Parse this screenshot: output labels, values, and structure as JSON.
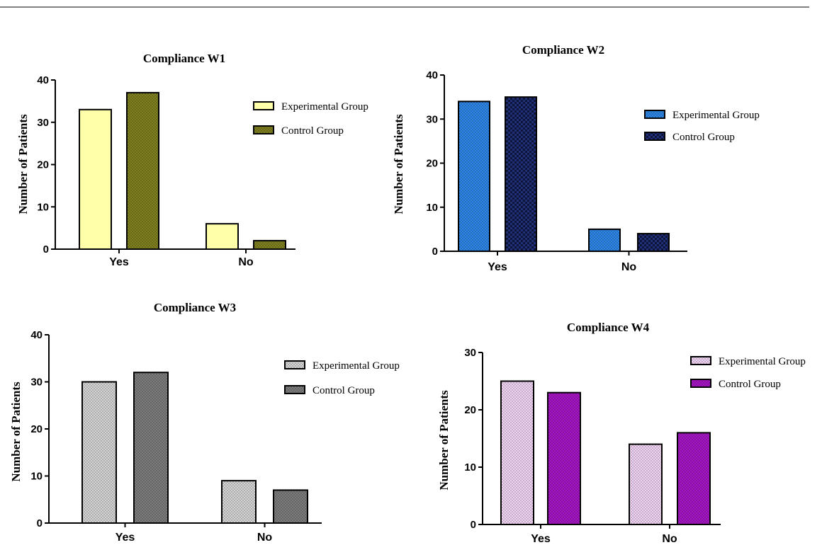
{
  "chart_data": [
    {
      "type": "bar",
      "title": "Compliance W1",
      "ylabel": "Number of Patients",
      "xlabel": "",
      "categories": [
        "Yes",
        "No"
      ],
      "ylim": [
        0,
        40
      ],
      "yticks": [
        0,
        10,
        20,
        30,
        40
      ],
      "legend_position": "top-right",
      "series": [
        {
          "name": "Experimental Group",
          "values": [
            33,
            6
          ],
          "color": "#ffffaa",
          "pattern": "none"
        },
        {
          "name": "Control Group",
          "values": [
            37,
            2
          ],
          "color": "#808020",
          "pattern": "dots"
        }
      ]
    },
    {
      "type": "bar",
      "title": "Compliance W2",
      "ylabel": "Number of Patients",
      "xlabel": "",
      "categories": [
        "Yes",
        "No"
      ],
      "ylim": [
        0,
        40
      ],
      "yticks": [
        0,
        10,
        20,
        30,
        40
      ],
      "legend_position": "right",
      "series": [
        {
          "name": "Experimental Group",
          "values": [
            34,
            5
          ],
          "color": "#2e86e6",
          "pattern": "dots"
        },
        {
          "name": "Control Group",
          "values": [
            35,
            4
          ],
          "color": "#1f2f7a",
          "pattern": "checker"
        }
      ]
    },
    {
      "type": "bar",
      "title": "Compliance W3",
      "ylabel": "Number of Patients",
      "xlabel": "",
      "categories": [
        "Yes",
        "No"
      ],
      "ylim": [
        0,
        40
      ],
      "yticks": [
        0,
        10,
        20,
        30,
        40
      ],
      "legend_position": "top-right",
      "series": [
        {
          "name": "Experimental Group",
          "values": [
            30,
            9
          ],
          "color": "#d4d4d4",
          "pattern": "dots"
        },
        {
          "name": "Control Group",
          "values": [
            32,
            7
          ],
          "color": "#7c7c7c",
          "pattern": "dots"
        }
      ]
    },
    {
      "type": "bar",
      "title": "Compliance W4",
      "ylabel": "Number of Patients",
      "xlabel": "",
      "categories": [
        "Yes",
        "No"
      ],
      "ylim": [
        0,
        30
      ],
      "yticks": [
        0,
        10,
        20,
        30
      ],
      "legend_position": "top-right",
      "series": [
        {
          "name": "Experimental Group",
          "values": [
            25,
            14
          ],
          "color": "#f1d4f3",
          "pattern": "dots"
        },
        {
          "name": "Control Group",
          "values": [
            23,
            16
          ],
          "color": "#a516c4",
          "pattern": "dots"
        }
      ]
    }
  ]
}
